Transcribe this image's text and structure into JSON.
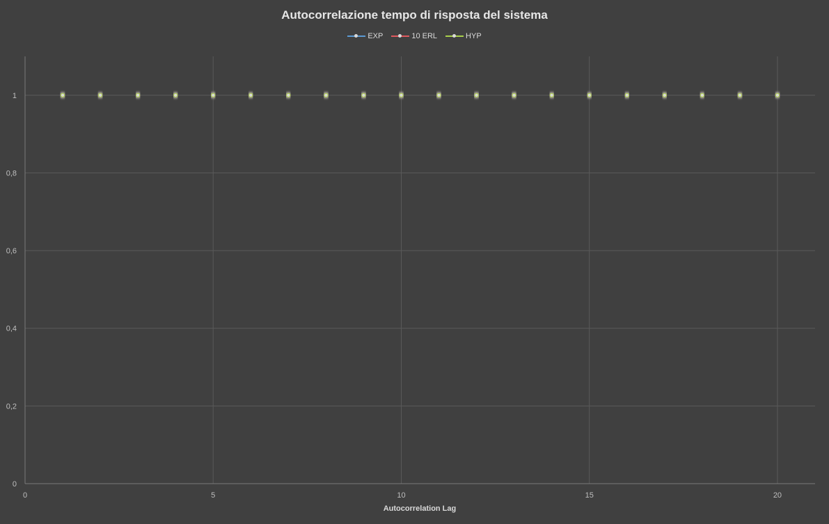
{
  "chart_data": {
    "type": "line",
    "title": "Autocorrelazione tempo di risposta del sistema",
    "xlabel": "Autocorrelation  Lag",
    "ylabel": "",
    "xlim": [
      0,
      21
    ],
    "ylim": [
      0,
      1.1
    ],
    "x_ticks": [
      0,
      5,
      10,
      15,
      20
    ],
    "x_tick_labels": [
      "0",
      "5",
      "10",
      "15",
      "20"
    ],
    "y_ticks": [
      0,
      0.2,
      0.4,
      0.6,
      0.8,
      1
    ],
    "y_tick_labels": [
      "0",
      "0,2",
      "0,4",
      "0,6",
      "0,8",
      "1"
    ],
    "grid": true,
    "legend_position": "top",
    "x": [
      1,
      2,
      3,
      4,
      5,
      6,
      7,
      8,
      9,
      10,
      11,
      12,
      13,
      14,
      15,
      16,
      17,
      18,
      19,
      20
    ],
    "series": [
      {
        "name": "EXP",
        "color": "#5b9bd5",
        "values": [
          1,
          1,
          1,
          1,
          1,
          1,
          1,
          1,
          1,
          1,
          1,
          1,
          1,
          1,
          1,
          1,
          1,
          1,
          1,
          1
        ]
      },
      {
        "name": "10 ERL",
        "color": "#e0595e",
        "values": [
          1,
          1,
          1,
          1,
          1,
          1,
          1,
          1,
          1,
          1,
          1,
          1,
          1,
          1,
          1,
          1,
          1,
          1,
          1,
          1
        ]
      },
      {
        "name": "HYP",
        "color": "#a9d14b",
        "values": [
          1,
          1,
          1,
          1,
          1,
          1,
          1,
          1,
          1,
          1,
          1,
          1,
          1,
          1,
          1,
          1,
          1,
          1,
          1,
          1
        ]
      }
    ]
  }
}
